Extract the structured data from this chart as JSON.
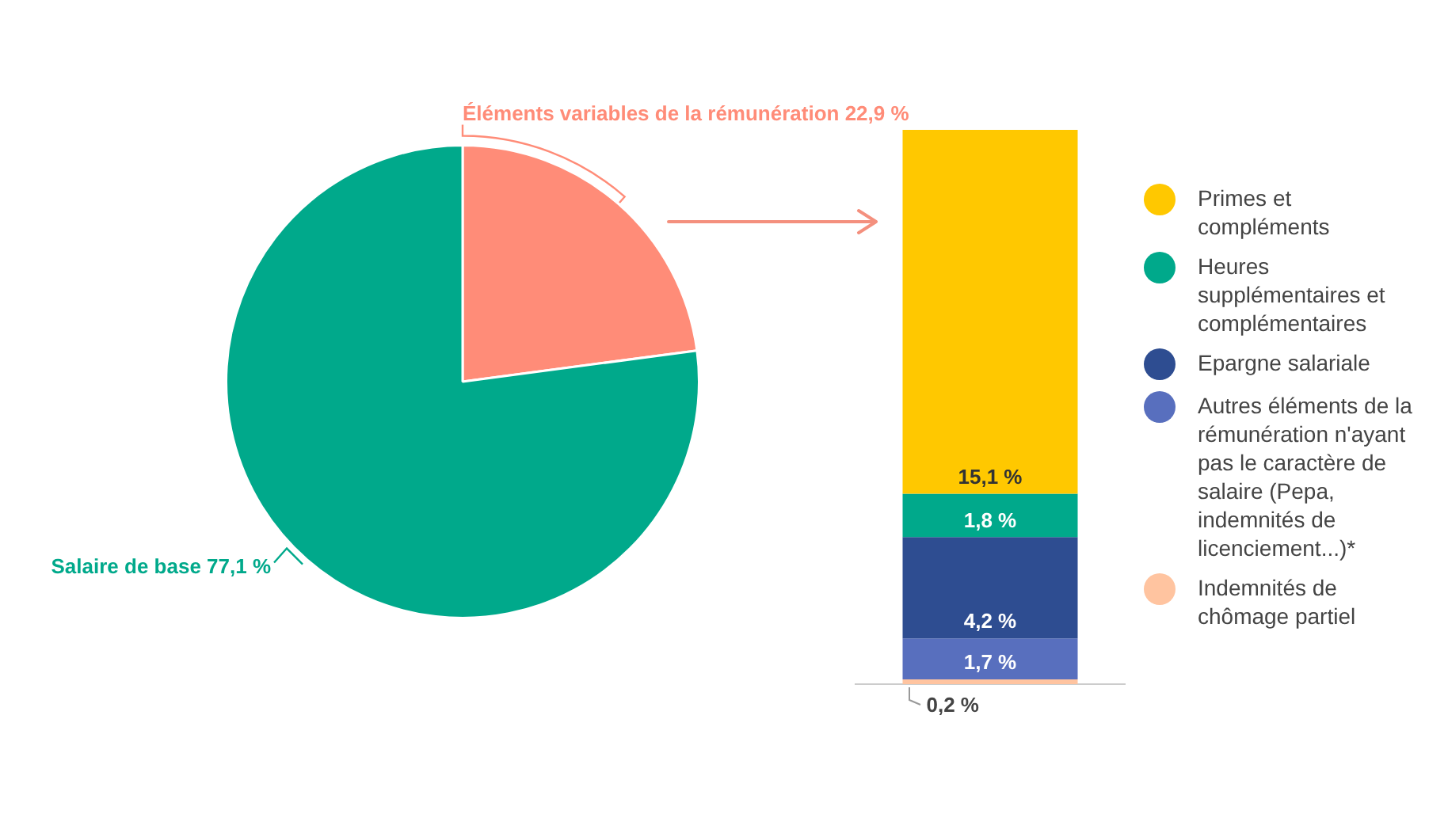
{
  "chart_data": [
    {
      "type": "pie",
      "categories": [
        "Éléments variables de la rémunération",
        "Salaire de base"
      ],
      "values": [
        22.9,
        77.1
      ],
      "colors": [
        "#ff8c78",
        "#00a98b"
      ],
      "value_labels": [
        "22,9 %",
        "77,1 %"
      ]
    },
    {
      "type": "bar",
      "categories": [
        null
      ],
      "stacked": true,
      "legend": "right",
      "series": [
        {
          "name": "Indemnités de chômage partiel",
          "color": "#ffc4a0",
          "values": [
            0.2
          ],
          "value_labels": [
            "0,2 %"
          ]
        },
        {
          "name": "Autres éléments de la rémunération n'ayant pas le caractère de salaire (Pepa, indemnités de licenciement...)*",
          "color": "#586fbe",
          "values": [
            1.7
          ],
          "value_labels": [
            "1,7 %"
          ]
        },
        {
          "name": "Epargne salariale",
          "color": "#2e4d91",
          "values": [
            4.2
          ],
          "value_labels": [
            "4,2 %"
          ]
        },
        {
          "name": "Heures supplémentaires et complémentaires",
          "color": "#00a98b",
          "values": [
            1.8
          ],
          "value_labels": [
            "1,8 %"
          ]
        },
        {
          "name": "Primes et compléments",
          "color": "#ffc800",
          "values": [
            15.1
          ],
          "value_labels": [
            "15,1 %"
          ]
        }
      ]
    }
  ]
}
